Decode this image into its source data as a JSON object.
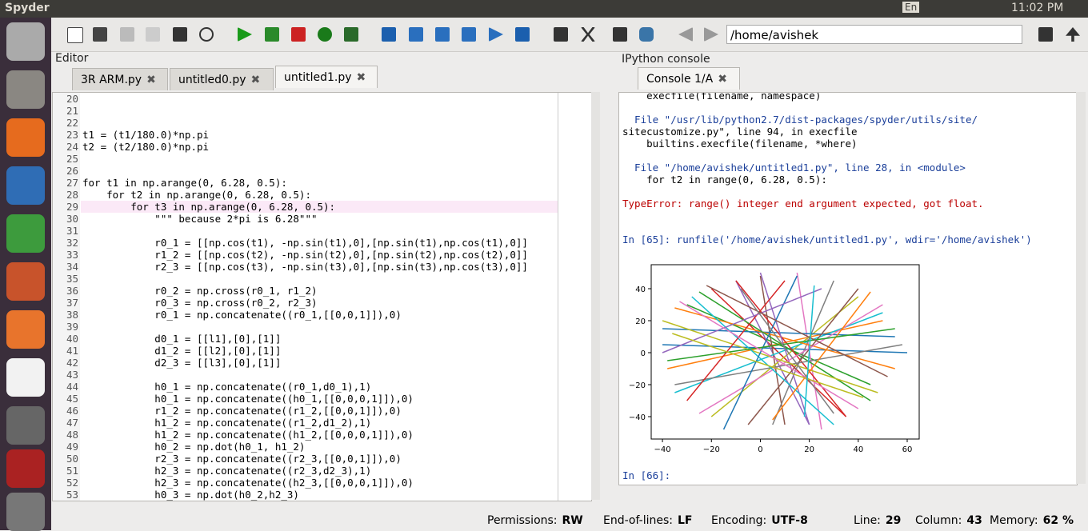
{
  "topbar": {
    "app": "Spyder",
    "lang": "En",
    "time": "11:02 PM"
  },
  "toolbar": {
    "path": "/home/avishek"
  },
  "editor": {
    "title": "Editor",
    "tabs": [
      "3R ARM.py",
      "untitled0.py",
      "untitled1.py"
    ],
    "line_numbers": [
      20,
      21,
      22,
      23,
      24,
      25,
      26,
      27,
      28,
      29,
      30,
      31,
      32,
      33,
      34,
      35,
      36,
      37,
      38,
      39,
      40,
      41,
      42,
      43,
      44,
      45,
      46,
      47,
      48,
      49,
      50,
      51,
      52,
      53
    ],
    "lines": [
      "",
      "",
      "",
      "t1 = (t1/180.0)*np.pi",
      "t2 = (t2/180.0)*np.pi",
      "",
      "",
      "for t1 in np.arange(0, 6.28, 0.5):",
      "    for t2 in np.arange(0, 6.28, 0.5):",
      "        for t3 in np.arange(0, 6.28, 0.5):",
      "            \"\"\" because 2*pi is 6.28\"\"\"",
      "",
      "            r0_1 = [[np.cos(t1), -np.sin(t1),0],[np.sin(t1),np.cos(t1),0]]",
      "            r1_2 = [[np.cos(t2), -np.sin(t2),0],[np.sin(t2),np.cos(t2),0]]",
      "            r2_3 = [[np.cos(t3), -np.sin(t3),0],[np.sin(t3),np.cos(t3),0]]",
      "",
      "            r0_2 = np.cross(r0_1, r1_2)",
      "            r0_3 = np.cross(r0_2, r2_3)",
      "            r0_1 = np.concatenate((r0_1,[[0,0,1]]),0)",
      "",
      "            d0_1 = [[l1],[0],[1]]",
      "            d1_2 = [[l2],[0],[1]]",
      "            d2_3 = [[l3],[0],[1]]",
      "",
      "            h0_1 = np.concatenate((r0_1,d0_1),1)",
      "            h0_1 = np.concatenate((h0_1,[[0,0,0,1]]),0)",
      "            r1_2 = np.concatenate((r1_2,[[0,0,1]]),0)",
      "            h1_2 = np.concatenate((r1_2,d1_2),1)",
      "            h1_2 = np.concatenate((h1_2,[[0,0,0,1]]),0)",
      "            h0_2 = np.dot(h0_1, h1_2)",
      "            r2_3 = np.concatenate((r2_3,[[0,0,1]]),0)",
      "            h2_3 = np.concatenate((r2_3,d2_3),1)",
      "            h2_3 = np.concatenate((h2_3,[[0,0,0,1]]),0)",
      "            h0_3 = np.dot(h0_2,h2_3)"
    ]
  },
  "console": {
    "title": "IPython console",
    "tab": "Console 1/A",
    "lines": [
      "    execfile(filename, namespace)",
      "",
      "  File \"/usr/lib/python2.7/dist-packages/spyder/utils/site/",
      "sitecustomize.py\", line 94, in execfile",
      "    builtins.execfile(filename, *where)",
      "",
      "  File \"/home/avishek/untitled1.py\", line 28, in <module>",
      "    for t2 in range(0, 6.28, 0.5):",
      "",
      "TypeError: range() integer end argument expected, got float.",
      "",
      "",
      "In [65]: runfile('/home/avishek/untitled1.py', wdir='/home/avishek')"
    ],
    "prompt": "In [66]:",
    "plot": {
      "type": "line",
      "xlim": [
        -44.6,
        64.9
      ],
      "ylim": [
        -54,
        55
      ],
      "xticks": [
        {
          "value": -40,
          "label": "−40"
        },
        {
          "value": -20,
          "label": "−20"
        },
        0,
        20,
        40,
        60
      ],
      "yticks": [
        40,
        20,
        0,
        {
          "value": -20,
          "label": "−20"
        },
        {
          "value": -40,
          "label": "−40"
        }
      ],
      "colors": [
        "#1f77b4",
        "#ff7f0e",
        "#2ca02c",
        "#d62728",
        "#9467bd",
        "#8c564b",
        "#e377c2",
        "#7f7f7f",
        "#bcbd22",
        "#17becf"
      ],
      "segments": [
        [
          -40,
          5,
          60,
          0
        ],
        [
          -38,
          -10,
          50,
          20
        ],
        [
          -30,
          30,
          45,
          -20
        ],
        [
          -20,
          40,
          35,
          -40
        ],
        [
          -10,
          45,
          20,
          -45
        ],
        [
          0,
          48,
          10,
          -45
        ],
        [
          15,
          50,
          25,
          -48
        ],
        [
          30,
          45,
          5,
          -45
        ],
        [
          40,
          35,
          -20,
          -40
        ],
        [
          50,
          25,
          -35,
          -25
        ],
        [
          55,
          10,
          -40,
          15
        ],
        [
          55,
          -10,
          -35,
          28
        ],
        [
          45,
          -30,
          -25,
          38
        ],
        [
          35,
          -40,
          -10,
          45
        ],
        [
          20,
          -45,
          0,
          50
        ],
        [
          -5,
          -45,
          40,
          40
        ],
        [
          -25,
          -38,
          50,
          30
        ],
        [
          -35,
          -20,
          58,
          5
        ],
        [
          -40,
          20,
          48,
          -25
        ],
        [
          -28,
          35,
          30,
          -45
        ],
        [
          -15,
          -48,
          15,
          48
        ],
        [
          5,
          -42,
          45,
          38
        ],
        [
          -38,
          -5,
          55,
          15
        ],
        [
          10,
          45,
          -30,
          -30
        ],
        [
          25,
          40,
          -40,
          0
        ],
        [
          -22,
          42,
          52,
          -15
        ],
        [
          40,
          -35,
          -33,
          32
        ],
        [
          -8,
          40,
          30,
          -38
        ],
        [
          -36,
          12,
          42,
          -28
        ],
        [
          18,
          -40,
          22,
          42
        ]
      ]
    }
  },
  "statusbar": {
    "items": [
      [
        "Permissions:",
        "RW"
      ],
      [
        "End-of-lines:",
        "LF"
      ],
      [
        "Encoding:",
        "UTF-8"
      ],
      [
        "Line:",
        "29"
      ],
      [
        "Column:",
        "43"
      ],
      [
        "Memory:",
        "62 %"
      ]
    ]
  }
}
